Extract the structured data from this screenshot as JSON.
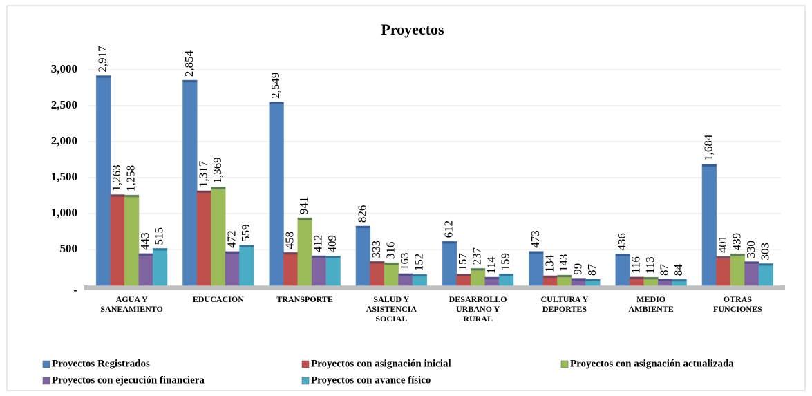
{
  "chart_data": {
    "type": "bar",
    "title": "Proyectos",
    "categories": [
      "AGUA Y SANEAMIENTO",
      "EDUCACION",
      "TRANSPORTE",
      "SALUD Y ASISTENCIA SOCIAL",
      "DESARROLLO URBANO Y RURAL",
      "CULTURA Y DEPORTES",
      "MEDIO AMBIENTE",
      "OTRAS FUNCIONES"
    ],
    "series": [
      {
        "name": "Proyectos Registrados",
        "color": "#4f81bd",
        "values": [
          2917,
          2854,
          2549,
          826,
          612,
          473,
          436,
          1684
        ],
        "value_labels": [
          "2,917",
          "2,854",
          "2,549",
          "826",
          "612",
          "473",
          "436",
          "1,684"
        ]
      },
      {
        "name": "Proyectos con asignación inicial",
        "color": "#c0504d",
        "values": [
          1263,
          1317,
          458,
          333,
          157,
          134,
          116,
          401
        ],
        "value_labels": [
          "1,263",
          "1,317",
          "458",
          "333",
          "157",
          "134",
          "116",
          "401"
        ]
      },
      {
        "name": "Proyectos con asignación actualizada",
        "color": "#9bbb59",
        "values": [
          1258,
          1369,
          941,
          316,
          237,
          143,
          113,
          439
        ],
        "value_labels": [
          "1,258",
          "1,369",
          "941",
          "316",
          "237",
          "143",
          "113",
          "439"
        ]
      },
      {
        "name": "Proyectos con ejecución financiera",
        "color": "#8064a2",
        "values": [
          443,
          472,
          412,
          163,
          114,
          99,
          87,
          330
        ],
        "value_labels": [
          "443",
          "472",
          "412",
          "163",
          "114",
          "99",
          "87",
          "330"
        ]
      },
      {
        "name": "Proyectos con avance físico",
        "color": "#4bacc6",
        "values": [
          515,
          559,
          409,
          152,
          159,
          87,
          84,
          303
        ],
        "value_labels": [
          "515",
          "559",
          "409",
          "152",
          "159",
          "87",
          "84",
          "303"
        ]
      }
    ],
    "ylim": [
      0,
      3000
    ],
    "yticks": [
      {
        "value": 0,
        "label": "-"
      },
      500,
      {
        "value": 1000,
        "label": "1,000"
      },
      {
        "value": 1500,
        "label": "1,500"
      },
      {
        "value": 2000,
        "label": "2,000"
      },
      {
        "value": 2500,
        "label": "2,500"
      },
      {
        "value": 3000,
        "label": "3,000"
      }
    ],
    "grid": true
  }
}
